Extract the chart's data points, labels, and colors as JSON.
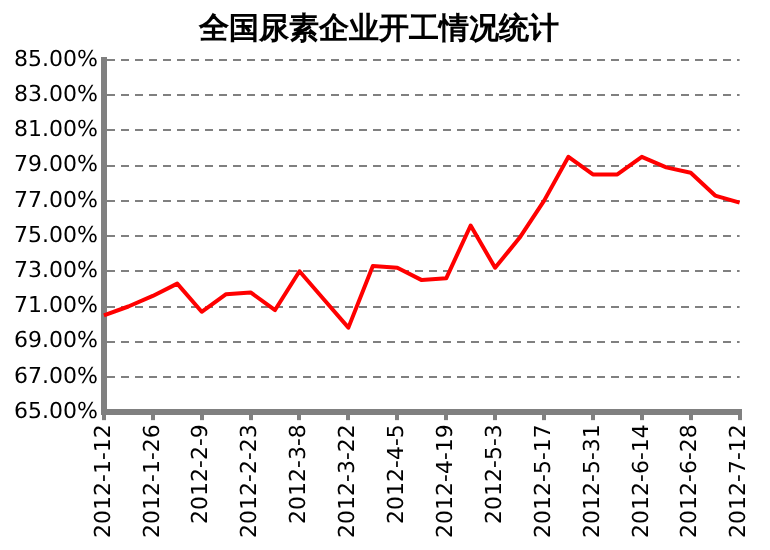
{
  "chart_data": {
    "type": "line",
    "title": "全国尿素企业开工情况统计",
    "categories": [
      "2012-1-12",
      null,
      "2012-1-26",
      null,
      "2012-2-9",
      null,
      "2012-2-23",
      null,
      "2012-3-8",
      null,
      "2012-3-22",
      null,
      "2012-4-5",
      null,
      "2012-4-19",
      null,
      "2012-5-3",
      null,
      "2012-5-17",
      null,
      "2012-5-31",
      null,
      "2012-6-14",
      null,
      "2012-6-28",
      null,
      "2012-7-12"
    ],
    "series": [
      {
        "color": "#ff0000",
        "values": [
          70.5,
          71.0,
          71.6,
          72.3,
          70.7,
          71.7,
          71.8,
          70.8,
          73.0,
          71.4,
          69.8,
          73.3,
          73.2,
          72.5,
          72.6,
          75.6,
          73.2,
          74.9,
          77.0,
          79.5,
          78.5,
          78.5,
          79.5,
          78.9,
          78.6,
          77.3,
          76.9
        ]
      }
    ],
    "ylim": [
      65,
      85
    ],
    "yticks": [
      {
        "value": 65,
        "label": "65.00%"
      },
      {
        "value": 67,
        "label": "67.00%"
      },
      {
        "value": 69,
        "label": "69.00%"
      },
      {
        "value": 71,
        "label": "71.00%"
      },
      {
        "value": 73,
        "label": "73.00%"
      },
      {
        "value": 75,
        "label": "75.00%"
      },
      {
        "value": 77,
        "label": "77.00%"
      },
      {
        "value": 79,
        "label": "79.00%"
      },
      {
        "value": 81,
        "label": "81.00%"
      },
      {
        "value": 83,
        "label": "83.00%"
      },
      {
        "value": 85,
        "label": "85.00%"
      }
    ],
    "grid": "y",
    "legend": false,
    "marker": "none",
    "line_style": "solid"
  }
}
